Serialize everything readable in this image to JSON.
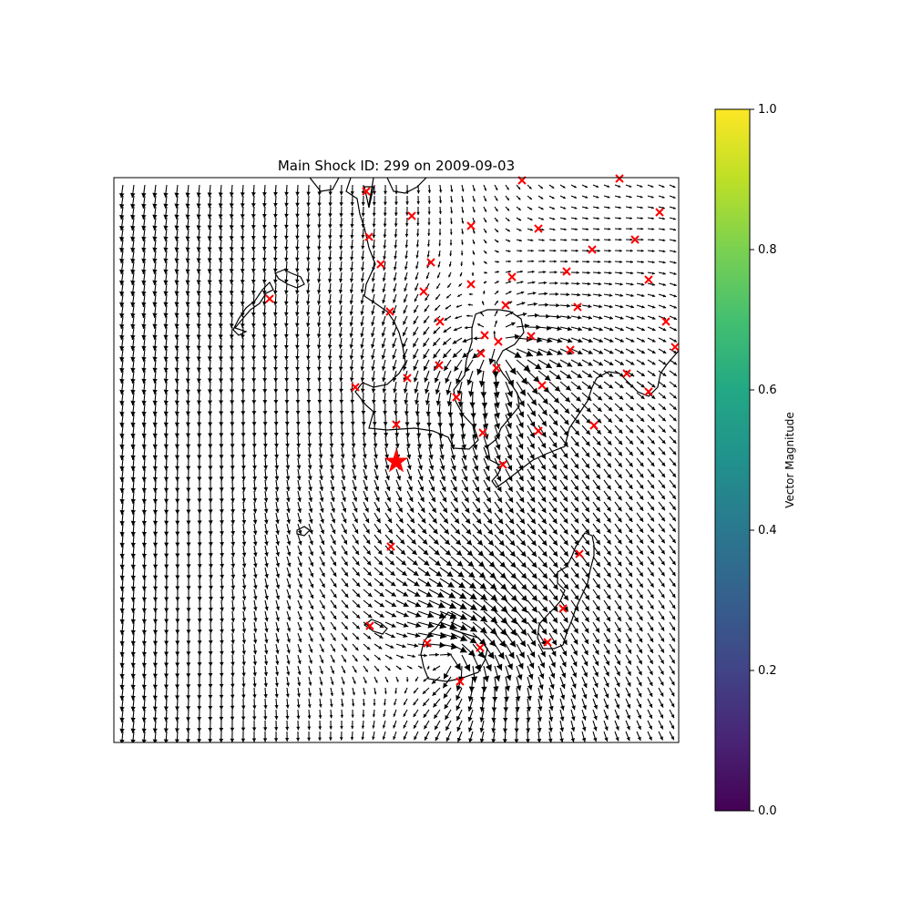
{
  "title": "Main Shock ID: 299 on 2009-09-03",
  "colorbar": {
    "label": "Vector Magnitude",
    "colormap": "viridis",
    "range": [
      0.0,
      1.0
    ],
    "ticks": [
      "0.0",
      "0.2",
      "0.4",
      "0.6",
      "0.8",
      "1.0"
    ]
  },
  "map": {
    "grid": false,
    "vector_color": "#000000",
    "coastline_color": "#000000",
    "epicenter_color": "#ff0000",
    "aftershock_color": "#ff0000"
  }
}
